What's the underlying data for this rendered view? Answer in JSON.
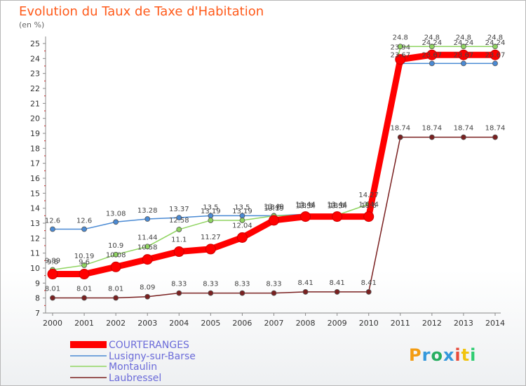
{
  "title": "Evolution du Taux de Taxe d'Habitation",
  "unit_label": "(en %)",
  "brand": {
    "text": "Proxiti",
    "colors": [
      "#f39c12",
      "#3498db",
      "#27ae60",
      "#3498db",
      "#e74c3c",
      "#f1c40f",
      "#2ecc71"
    ]
  },
  "chart_data": {
    "type": "line",
    "title": "Evolution du Taux de Taxe d'Habitation",
    "ylabel": "(en %)",
    "xlabel": "",
    "x": [
      "2000",
      "2001",
      "2002",
      "2003",
      "2004",
      "2005",
      "2006",
      "2007",
      "2008",
      "2009",
      "2010",
      "2011",
      "2012",
      "2013",
      "2014"
    ],
    "yticks": [
      "7",
      "8",
      "9",
      "10",
      "11",
      "12",
      "13",
      "14",
      "15",
      "16",
      "17",
      "18",
      "19",
      "20",
      "21",
      "22",
      "23",
      "24",
      "25"
    ],
    "ylim": [
      7,
      25
    ],
    "grid": false,
    "legend_position": "bottom-left",
    "series": [
      {
        "name": "COURTERANGES",
        "color": "#ff0000",
        "values": [
          9.6,
          9.6,
          10.08,
          10.58,
          11.1,
          11.27,
          12.04,
          13.19,
          13.44,
          13.44,
          13.44,
          23.94,
          24.24,
          24.24,
          24.24
        ],
        "labels": [
          "9.6",
          "9.6",
          "10.08",
          "10.58",
          "11.1",
          "11.27",
          "12.04",
          "13.19",
          "13.44",
          "13.44",
          "13.44",
          "23.94",
          "24.24",
          "24.24",
          "24.24"
        ]
      },
      {
        "name": "Lusigny-sur-Barse",
        "color": "#4a8ad4",
        "values": [
          12.6,
          12.6,
          13.08,
          13.28,
          13.37,
          13.5,
          13.5,
          13.5,
          13.6,
          13.6,
          13.6,
          23.67,
          23.67,
          23.67,
          23.67
        ],
        "labels": [
          "12.6",
          "12.6",
          "13.08",
          "13.28",
          "13.37",
          "13.5",
          "13.5",
          "13.5",
          "13.6",
          "13.6",
          "13.6",
          "23.67",
          "23.67",
          "23.67",
          "23.67"
        ]
      },
      {
        "name": "Montaulin",
        "color": "#8fd460",
        "values": [
          9.89,
          10.19,
          10.9,
          11.44,
          12.58,
          13.19,
          13.19,
          13.49,
          13.54,
          13.54,
          14.27,
          24.8,
          24.8,
          24.8,
          24.8
        ],
        "labels": [
          "9.89",
          "10.19",
          "10.9",
          "11.44",
          "12.58",
          "13.19",
          "13.19",
          "13.49",
          "13.54",
          "13.54",
          "14.27",
          "24.8",
          "24.8",
          "24.8",
          "24.8"
        ]
      },
      {
        "name": "Laubressel",
        "color": "#7a2020",
        "values": [
          8.01,
          8.01,
          8.01,
          8.09,
          8.33,
          8.33,
          8.33,
          8.33,
          8.41,
          8.41,
          8.41,
          18.74,
          18.74,
          18.74,
          18.74
        ],
        "labels": [
          "8.01",
          "8.01",
          "8.01",
          "8.09",
          "8.33",
          "8.33",
          "8.33",
          "8.33",
          "8.41",
          "8.41",
          "8.41",
          "18.74",
          "18.74",
          "18.74",
          "18.74"
        ]
      }
    ]
  }
}
